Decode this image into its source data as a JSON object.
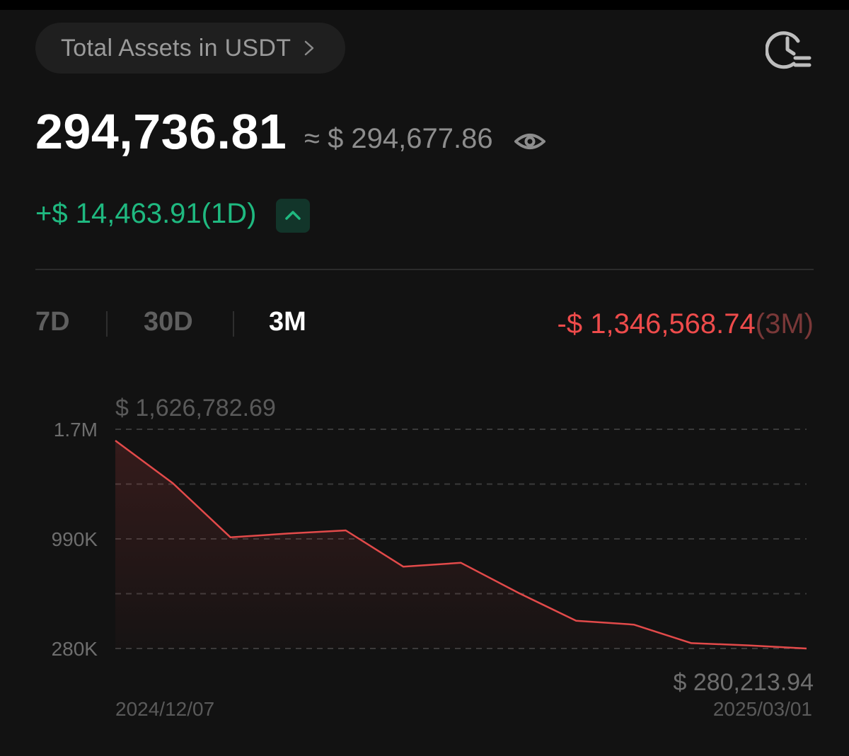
{
  "header": {
    "assets_label": "Total Assets in USDT",
    "history_icon": "clock-history-icon"
  },
  "balance": {
    "total": "294,736.81",
    "approx_usd": "≈ $ 294,677.86",
    "visibility_icon": "eye-icon"
  },
  "pnl_1d": {
    "text": "+$ 14,463.91(1D)",
    "toggle_icon": "chevron-up-icon"
  },
  "tabs": [
    {
      "label": "7D",
      "active": false
    },
    {
      "label": "30D",
      "active": false
    },
    {
      "label": "3M",
      "active": true
    }
  ],
  "pnl_3m": {
    "value": "-$ 1,346,568.74",
    "period": "(3M)"
  },
  "colors": {
    "background": "#121212",
    "positive": "#1fb980",
    "negative": "#ee4b4b",
    "muted_text": "#8d8d8d"
  },
  "chart_data": {
    "type": "area",
    "x_start_label": "2024/12/07",
    "x_end_label": "2025/03/01",
    "y_tick_labels": [
      "1.7M",
      "990K",
      "280K"
    ],
    "y_ticks": [
      1700000,
      990000,
      280000
    ],
    "ylim": [
      280000,
      1700000
    ],
    "grid": true,
    "high_label": "$ 1,626,782.69",
    "low_label": "$ 280,213.94",
    "values": [
      1626782.69,
      1350000,
      1000000,
      1025000,
      1045000,
      810000,
      835000,
      640000,
      460000,
      435000,
      315000,
      300000,
      280213.94
    ]
  }
}
